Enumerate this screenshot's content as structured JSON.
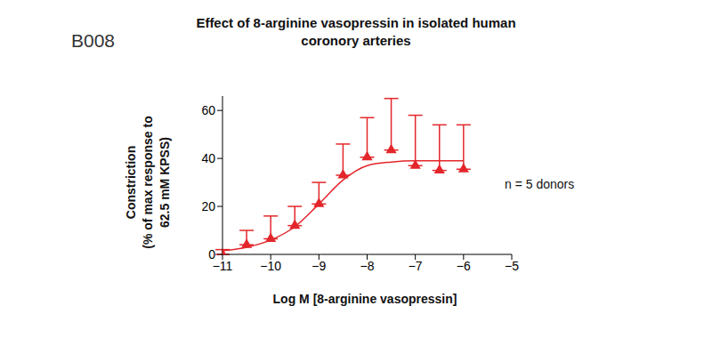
{
  "chart_data": {
    "type": "scatter",
    "panel_label": "B008",
    "title": [
      "Effect of 8-arginine vasopressin in isolated human",
      "coronory arteries"
    ],
    "x_label": "Log M [8-arginine vasopressin]",
    "y_label": [
      "Constriction",
      "(% of max response to",
      "62.5 mM KPSS)"
    ],
    "annotation": "n = 5 donors",
    "x": [
      -11,
      -10.5,
      -10,
      -9.5,
      -9,
      -8.5,
      -8,
      -7.5,
      -7,
      -6.5,
      -6
    ],
    "values": [
      0,
      4,
      6.5,
      12,
      21,
      33,
      40.5,
      43.5,
      37,
      35,
      35.5
    ],
    "error_upper": [
      2,
      6,
      9.5,
      8,
      9,
      13,
      16.5,
      21.5,
      21,
      19,
      18.5
    ],
    "fit_values": [
      1.5,
      3,
      6,
      11.5,
      21,
      31,
      37,
      38.5,
      39,
      39,
      39
    ],
    "color": "#e3262b",
    "marker": "triangle",
    "grid": false,
    "xlim": [
      -11,
      -5
    ],
    "xticks": [
      {
        "value": -11,
        "label": "−11"
      },
      {
        "value": -10,
        "label": "−10"
      },
      {
        "value": -9,
        "label": "−9"
      },
      {
        "value": -8,
        "label": "−8"
      },
      {
        "value": -7,
        "label": "−7"
      },
      {
        "value": -6,
        "label": "−6"
      },
      {
        "value": -5,
        "label": "−5"
      }
    ],
    "ylim": [
      0,
      66
    ],
    "yticks": [
      0,
      20,
      40,
      60
    ]
  }
}
